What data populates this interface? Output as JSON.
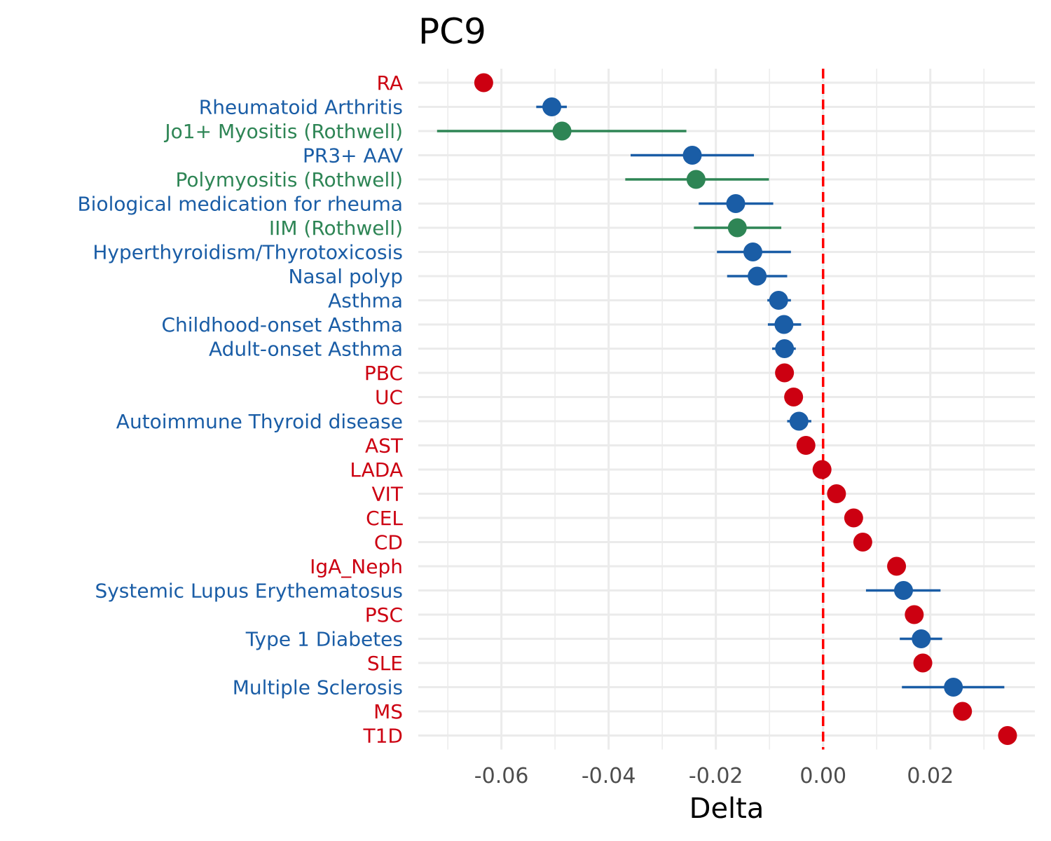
{
  "chart_data": {
    "type": "scatter",
    "title": "PC9",
    "xlabel": "Delta",
    "ylabel": "",
    "xlim": [
      -0.0755,
      0.0395
    ],
    "x_ticks": [
      -0.06,
      -0.04,
      -0.02,
      0.0,
      0.02
    ],
    "x_tick_labels": [
      "-0.06",
      "-0.04",
      "-0.02",
      "0.00",
      "0.02"
    ],
    "grid": true,
    "reference_line": {
      "x": 0,
      "color": "#ff0000",
      "style": "dashed"
    },
    "colors": {
      "red": "#cc0011",
      "blue": "#1a5da6",
      "green": "#2e8555"
    },
    "points": [
      {
        "label": "RA",
        "x": -0.0633,
        "color": "red"
      },
      {
        "label": "Rheumatoid Arthritis",
        "x": -0.0506,
        "lo": -0.0535,
        "hi": -0.0478,
        "color": "blue"
      },
      {
        "label": "Jo1+ Myositis (Rothwell)",
        "x": -0.0487,
        "lo": -0.072,
        "hi": -0.0255,
        "color": "green"
      },
      {
        "label": "PR3+ AAV",
        "x": -0.0244,
        "lo": -0.0359,
        "hi": -0.0129,
        "color": "blue"
      },
      {
        "label": "Polymyositis (Rothwell)",
        "x": -0.0237,
        "lo": -0.0369,
        "hi": -0.0101,
        "color": "green"
      },
      {
        "label": "Biological medication for rheuma",
        "x": -0.0163,
        "lo": -0.0232,
        "hi": -0.0093,
        "color": "blue"
      },
      {
        "label": "IIM (Rothwell)",
        "x": -0.016,
        "lo": -0.0241,
        "hi": -0.0078,
        "color": "green"
      },
      {
        "label": "Hyperthyroidism/Thyrotoxicosis",
        "x": -0.0131,
        "lo": -0.0198,
        "hi": -0.006,
        "color": "blue"
      },
      {
        "label": "Nasal polyp",
        "x": -0.0123,
        "lo": -0.0179,
        "hi": -0.0067,
        "color": "blue"
      },
      {
        "label": "Asthma",
        "x": -0.0083,
        "lo": -0.0104,
        "hi": -0.006,
        "color": "blue"
      },
      {
        "label": "Childhood-onset Asthma",
        "x": -0.0073,
        "lo": -0.0103,
        "hi": -0.0041,
        "color": "blue"
      },
      {
        "label": "Adult-onset Asthma",
        "x": -0.0072,
        "lo": -0.0095,
        "hi": -0.0051,
        "color": "blue"
      },
      {
        "label": "PBC",
        "x": -0.0072,
        "color": "red"
      },
      {
        "label": "UC",
        "x": -0.0055,
        "color": "red"
      },
      {
        "label": "Autoimmune Thyroid disease",
        "x": -0.0045,
        "lo": -0.0067,
        "hi": -0.0022,
        "color": "blue"
      },
      {
        "label": "AST",
        "x": -0.0032,
        "color": "red"
      },
      {
        "label": "LADA",
        "x": -0.0002,
        "color": "red"
      },
      {
        "label": "VIT",
        "x": 0.0025,
        "color": "red"
      },
      {
        "label": "CEL",
        "x": 0.0057,
        "color": "red"
      },
      {
        "label": "CD",
        "x": 0.0074,
        "color": "red"
      },
      {
        "label": "IgA_Neph",
        "x": 0.0137,
        "color": "red"
      },
      {
        "label": "Systemic Lupus Erythematosus",
        "x": 0.015,
        "lo": 0.008,
        "hi": 0.0219,
        "color": "blue"
      },
      {
        "label": "PSC",
        "x": 0.017,
        "color": "red"
      },
      {
        "label": "Type 1 Diabetes",
        "x": 0.0183,
        "lo": 0.0143,
        "hi": 0.0222,
        "color": "blue"
      },
      {
        "label": "SLE",
        "x": 0.0186,
        "color": "red"
      },
      {
        "label": "Multiple Sclerosis",
        "x": 0.0243,
        "lo": 0.0147,
        "hi": 0.0338,
        "color": "blue"
      },
      {
        "label": "MS",
        "x": 0.026,
        "color": "red"
      },
      {
        "label": "T1D",
        "x": 0.0344,
        "color": "red"
      }
    ]
  }
}
